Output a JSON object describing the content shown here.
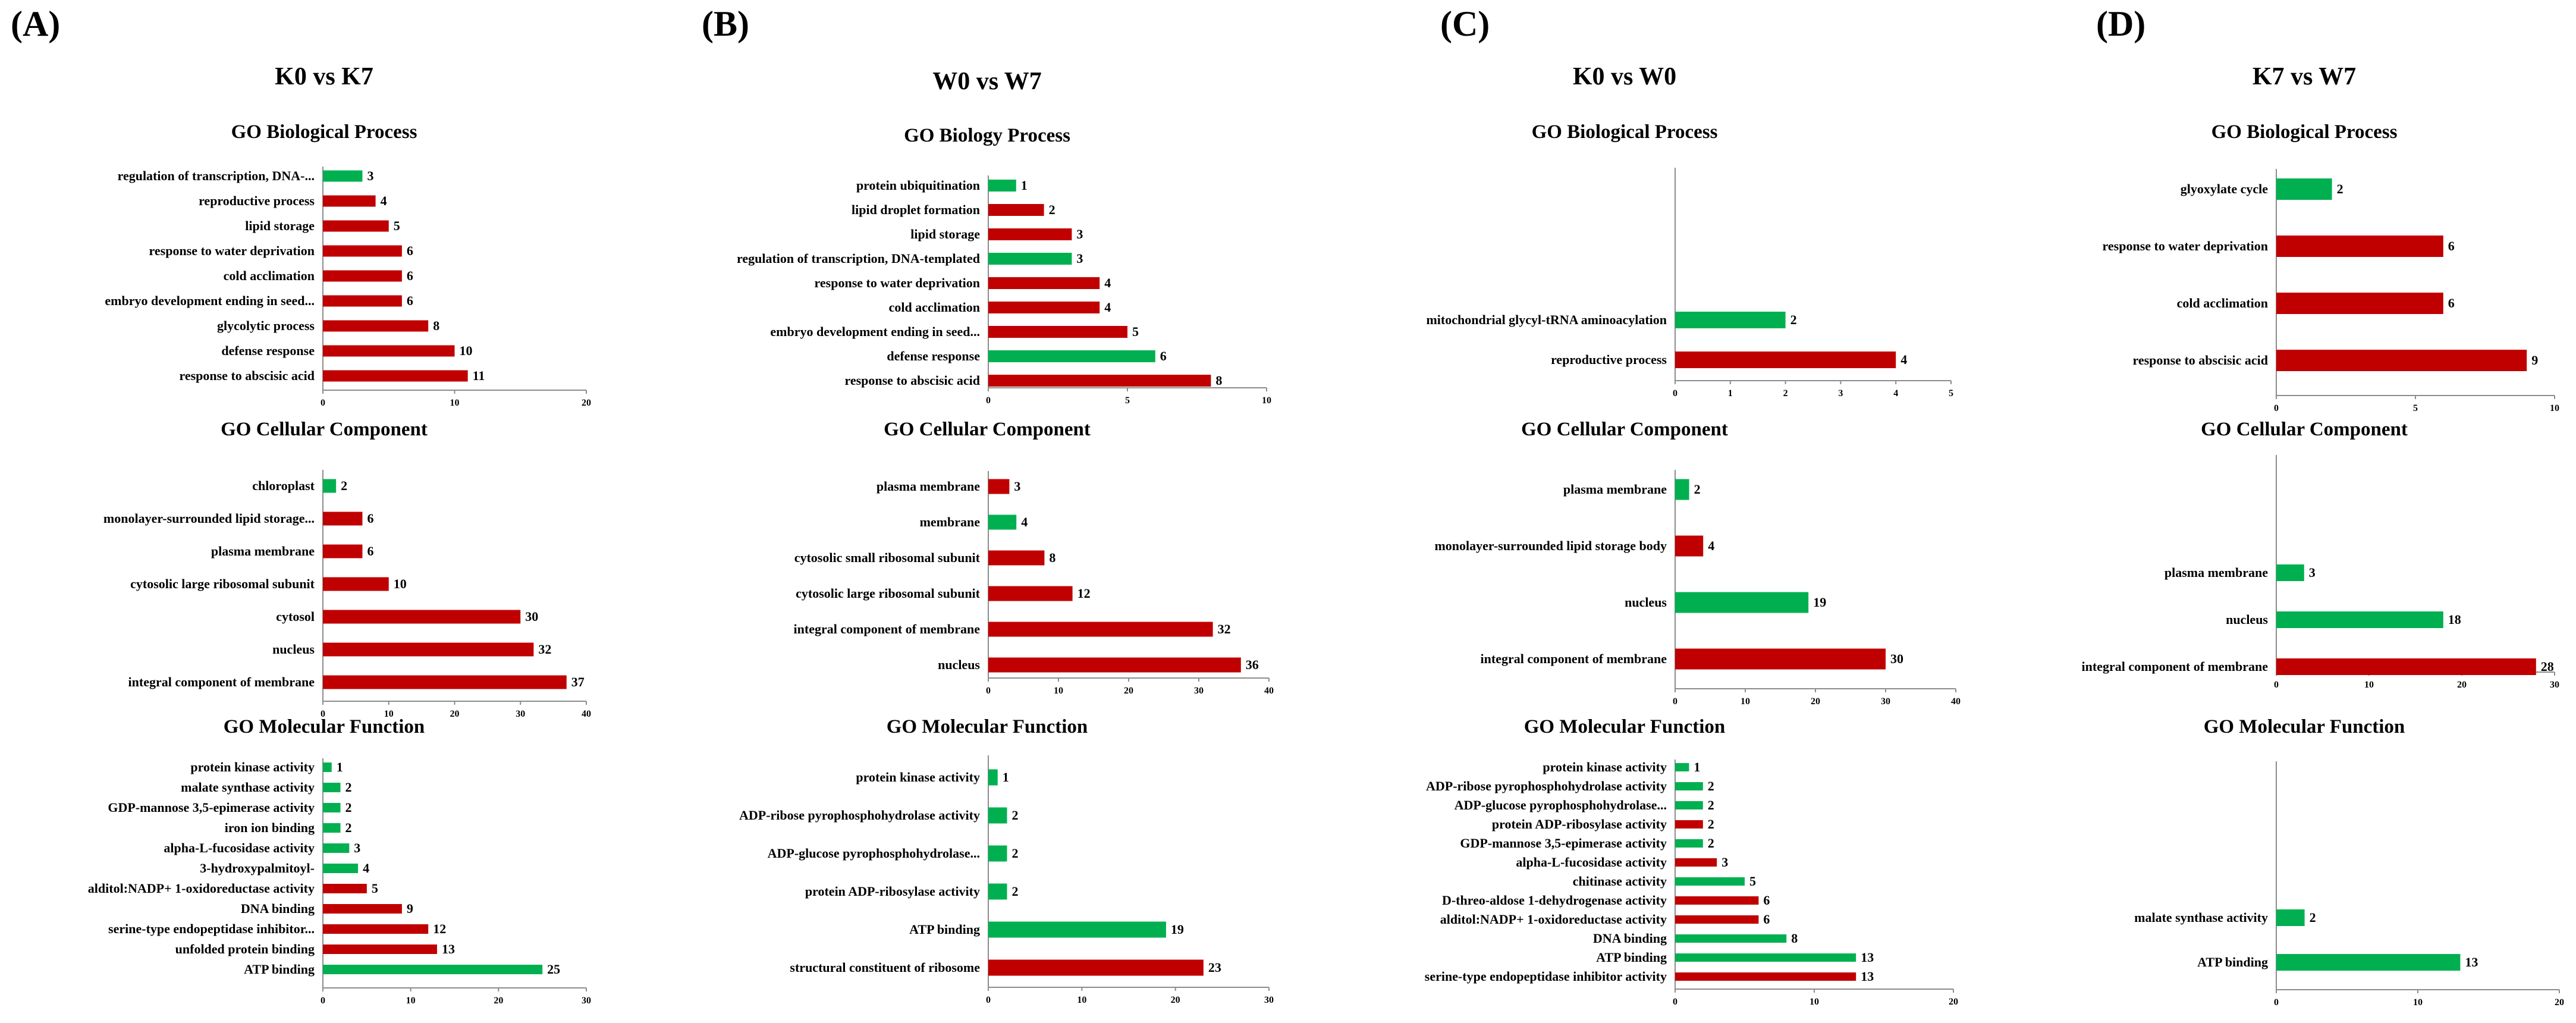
{
  "colors": {
    "up": "#c00000",
    "down": "#00b050",
    "axis": "#8c8c8c"
  },
  "panels": [
    {
      "label": "(A)",
      "comparison": "K0 vs K7"
    },
    {
      "label": "(B)",
      "comparison": "W0 vs W7"
    },
    {
      "label": "(C)",
      "comparison": "K0 vs W0"
    },
    {
      "label": "(D)",
      "comparison": "K7 vs W7"
    }
  ],
  "chart_data": [
    {
      "type": "bar",
      "orientation": "horizontal",
      "panel": "(A)",
      "title": "GO Biological Process",
      "categories": [
        "regulation of transcription, DNA-...",
        "reproductive process",
        "lipid storage",
        "response to water deprivation",
        "cold acclimation",
        "embryo development ending in seed...",
        "glycolytic process",
        "defense response",
        "response to abscisic acid"
      ],
      "values": [
        3,
        4,
        5,
        6,
        6,
        6,
        8,
        10,
        11
      ],
      "colors": [
        "down",
        "up",
        "up",
        "up",
        "up",
        "up",
        "up",
        "up",
        "up"
      ],
      "xlim": [
        0,
        20
      ],
      "xticks": [
        0,
        10,
        20
      ]
    },
    {
      "type": "bar",
      "orientation": "horizontal",
      "panel": "(A)",
      "title": "GO Cellular Component",
      "categories": [
        "chloroplast",
        "monolayer-surrounded lipid storage...",
        "plasma membrane",
        "cytosolic large ribosomal subunit",
        "cytosol",
        "nucleus",
        "integral component of membrane"
      ],
      "values": [
        2,
        6,
        6,
        10,
        30,
        32,
        37
      ],
      "colors": [
        "down",
        "up",
        "up",
        "up",
        "up",
        "up",
        "up"
      ],
      "xlim": [
        0,
        40
      ],
      "xticks": [
        0,
        10,
        20,
        30,
        40
      ]
    },
    {
      "type": "bar",
      "orientation": "horizontal",
      "panel": "(A)",
      "title": "GO Molecular Function",
      "categories": [
        "protein kinase activity",
        "malate synthase activity",
        "GDP-mannose 3,5-epimerase activity",
        "iron ion binding",
        "alpha-L-fucosidase activity",
        "3-hydroxypalmitoyl-",
        "alditol:NADP+ 1-oxidoreductase activity",
        "DNA binding",
        "serine-type endopeptidase inhibitor...",
        "unfolded protein binding",
        "ATP binding"
      ],
      "values": [
        1,
        2,
        2,
        2,
        3,
        4,
        5,
        9,
        12,
        13,
        25
      ],
      "colors": [
        "down",
        "down",
        "down",
        "down",
        "down",
        "down",
        "up",
        "up",
        "up",
        "up",
        "down"
      ],
      "xlim": [
        0,
        30
      ],
      "xticks": [
        0,
        10,
        20,
        30
      ]
    },
    {
      "type": "bar",
      "orientation": "horizontal",
      "panel": "(B)",
      "title": "GO Biology Process",
      "categories": [
        "protein ubiquitination",
        "lipid droplet formation",
        "lipid storage",
        "regulation of transcription, DNA-templated",
        "response to water deprivation",
        "cold acclimation",
        "embryo development ending in seed...",
        "defense response",
        "response to abscisic acid"
      ],
      "values": [
        1,
        2,
        3,
        3,
        4,
        4,
        5,
        6,
        8
      ],
      "colors": [
        "down",
        "up",
        "up",
        "down",
        "up",
        "up",
        "up",
        "down",
        "up"
      ],
      "xlim": [
        0,
        10
      ],
      "xticks": [
        0,
        5,
        10
      ]
    },
    {
      "type": "bar",
      "orientation": "horizontal",
      "panel": "(B)",
      "title": "GO Cellular Component",
      "categories": [
        "plasma membrane",
        "membrane",
        "cytosolic small ribosomal subunit",
        "cytosolic large ribosomal subunit",
        "integral component of membrane",
        "nucleus"
      ],
      "values": [
        3,
        4,
        8,
        12,
        32,
        36
      ],
      "colors": [
        "up",
        "down",
        "up",
        "up",
        "up",
        "up"
      ],
      "xlim": [
        0,
        40
      ],
      "xticks": [
        0,
        10,
        20,
        30,
        40
      ]
    },
    {
      "type": "bar",
      "orientation": "horizontal",
      "panel": "(B)",
      "title": "GO Molecular Function",
      "categories": [
        "protein kinase activity",
        "ADP-ribose pyrophosphohydrolase activity",
        "ADP-glucose pyrophosphohydrolase...",
        "protein ADP-ribosylase activity",
        "ATP binding",
        "structural constituent of ribosome"
      ],
      "values": [
        1,
        2,
        2,
        2,
        19,
        23
      ],
      "colors": [
        "down",
        "down",
        "down",
        "down",
        "down",
        "up"
      ],
      "xlim": [
        0,
        30
      ],
      "xticks": [
        0,
        10,
        20,
        30
      ]
    },
    {
      "type": "bar",
      "orientation": "horizontal",
      "panel": "(C)",
      "title": "GO Biological Process",
      "categories": [
        "mitochondrial glycyl-tRNA aminoacylation",
        "reproductive process"
      ],
      "values": [
        2,
        4
      ],
      "colors": [
        "down",
        "up"
      ],
      "xlim": [
        0,
        5
      ],
      "xticks": [
        0,
        1,
        2,
        3,
        4,
        5
      ]
    },
    {
      "type": "bar",
      "orientation": "horizontal",
      "panel": "(C)",
      "title": "GO Cellular Component",
      "categories": [
        "plasma membrane",
        "monolayer-surrounded lipid storage body",
        "nucleus",
        "integral component of membrane"
      ],
      "values": [
        2,
        4,
        19,
        30
      ],
      "colors": [
        "down",
        "up",
        "down",
        "up"
      ],
      "xlim": [
        0,
        40
      ],
      "xticks": [
        0,
        10,
        20,
        30,
        40
      ]
    },
    {
      "type": "bar",
      "orientation": "horizontal",
      "panel": "(C)",
      "title": "GO Molecular Function",
      "categories": [
        "protein kinase activity",
        "ADP-ribose pyrophosphohydrolase activity",
        "ADP-glucose pyrophosphohydrolase...",
        "protein ADP-ribosylase activity",
        "GDP-mannose 3,5-epimerase activity",
        "alpha-L-fucosidase activity",
        "chitinase activity",
        "D-threo-aldose 1-dehydrogenase activity",
        "alditol:NADP+ 1-oxidoreductase activity",
        "DNA binding",
        "ATP binding",
        "serine-type endopeptidase inhibitor activity"
      ],
      "values": [
        1,
        2,
        2,
        2,
        2,
        3,
        5,
        6,
        6,
        8,
        13,
        13
      ],
      "colors": [
        "down",
        "down",
        "down",
        "up",
        "down",
        "up",
        "down",
        "up",
        "up",
        "down",
        "down",
        "up"
      ],
      "xlim": [
        0,
        20
      ],
      "xticks": [
        0,
        10,
        20
      ]
    },
    {
      "type": "bar",
      "orientation": "horizontal",
      "panel": "(D)",
      "title": "GO Biological Process",
      "categories": [
        "glyoxylate cycle",
        "response to water deprivation",
        "cold acclimation",
        "response to abscisic acid"
      ],
      "values": [
        2,
        6,
        6,
        9
      ],
      "colors": [
        "down",
        "up",
        "up",
        "up"
      ],
      "xlim": [
        0,
        10
      ],
      "xticks": [
        0,
        5,
        10
      ]
    },
    {
      "type": "bar",
      "orientation": "horizontal",
      "panel": "(D)",
      "title": "GO Cellular Component",
      "categories": [
        "plasma membrane",
        "nucleus",
        "integral component of membrane"
      ],
      "values": [
        3,
        18,
        28
      ],
      "colors": [
        "down",
        "down",
        "up"
      ],
      "xlim": [
        0,
        30
      ],
      "xticks": [
        0,
        10,
        20,
        30
      ]
    },
    {
      "type": "bar",
      "orientation": "horizontal",
      "panel": "(D)",
      "title": "GO Molecular Function",
      "categories": [
        "malate synthase activity",
        "ATP binding"
      ],
      "values": [
        2,
        13
      ],
      "colors": [
        "down",
        "down"
      ],
      "xlim": [
        0,
        20
      ],
      "xticks": [
        0,
        10,
        20
      ]
    }
  ]
}
